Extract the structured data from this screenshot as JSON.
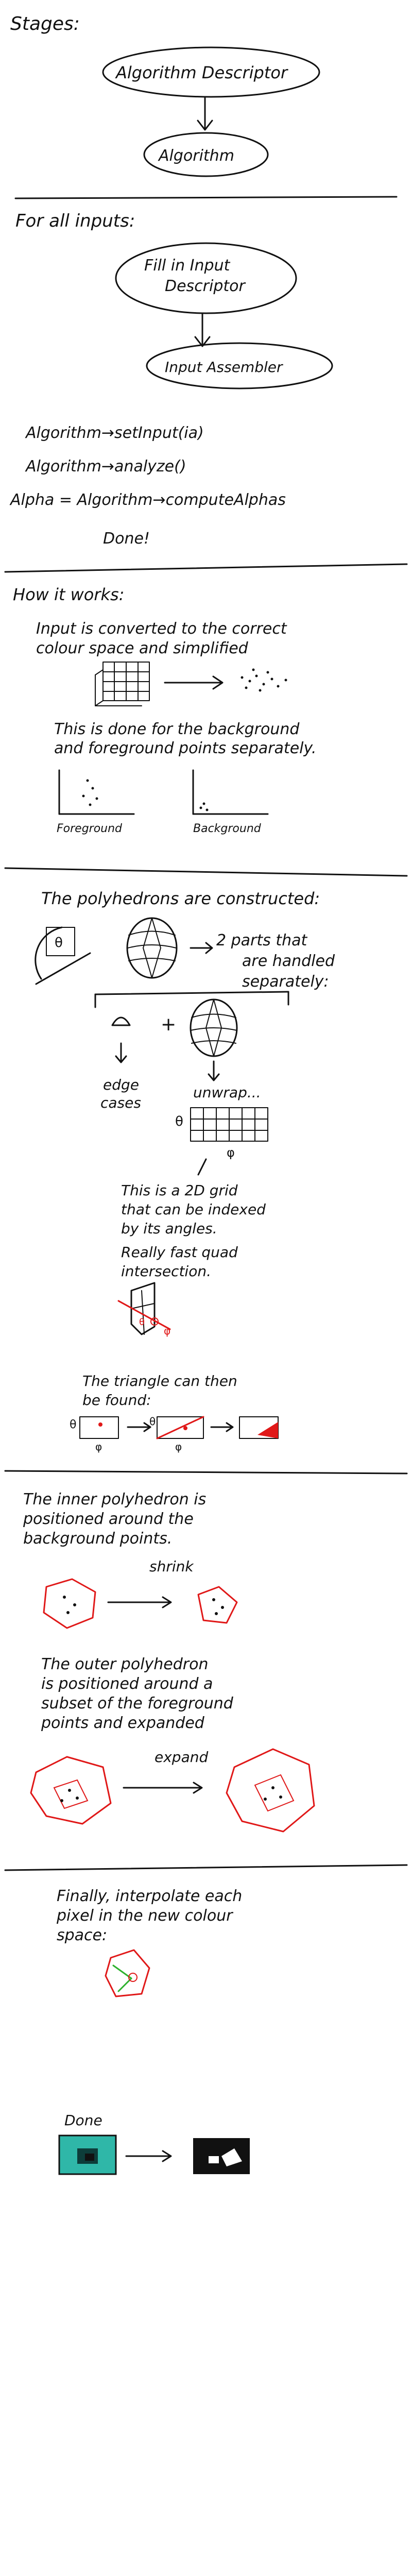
{
  "stages": {
    "heading": "Stages:",
    "box1": "Algorithm Descriptor",
    "box2": "Algorithm",
    "for_all": "For all inputs:",
    "box3_line1": "Fill in Input",
    "box3_line2": "Descriptor",
    "box4": "Input Assembler",
    "code1": "Algorithm→setInput(ia)",
    "code2": "Algorithm→analyze()",
    "code3": "Alpha = Algorithm→computeAlphas",
    "done": "Done!"
  },
  "how": {
    "heading": "How it works:",
    "p1_line1": "Input is converted to the correct",
    "p1_line2": "colour space and simplified",
    "p2_line1": "This is done for the background",
    "p2_line2": "and foreground points separately.",
    "label_fg": "Foreground",
    "label_bg": "Background"
  },
  "poly": {
    "heading": "The polyhedrons are constructed:",
    "two_parts_line1": "2 parts that",
    "two_parts_line2": "are handled",
    "two_parts_line3": "separately:",
    "theta": "θ",
    "edge_line1": "edge",
    "edge_line2": "cases",
    "unwrap": "unwrap...",
    "phi": "φ",
    "grid_line1": "This is a 2D grid",
    "grid_line2": "that can be indexed",
    "grid_line3": "by its angles.",
    "grid_line4": "Really fast quad",
    "grid_line5": "intersection.",
    "tri_line1": "The triangle can then",
    "tri_line2": "be found:"
  },
  "inner": {
    "line1": "The inner polyhedron is",
    "line2": "positioned around the",
    "line3": "background points.",
    "shrink": "shrink",
    "outer_line1": "The outer polyhedron",
    "outer_line2": "is positioned around a",
    "outer_line3": "subset of the foreground",
    "outer_line4": "points and expanded",
    "expand": "expand"
  },
  "final": {
    "line1": "Finally, interpolate each",
    "line2": "pixel in the new colour",
    "line3": "space:",
    "done": "Done"
  },
  "colors": {
    "ink": "#111111",
    "red": "#e01818",
    "green": "#2db12d",
    "teal": "#2fb7a8"
  }
}
